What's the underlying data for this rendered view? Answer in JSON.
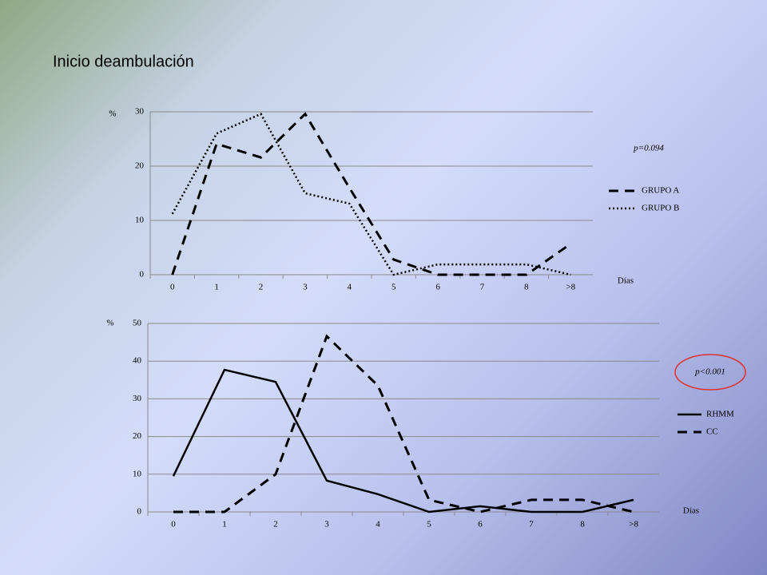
{
  "title": "Inicio deambulación",
  "chart_data": [
    {
      "type": "line",
      "ylabel": "%",
      "xlabel": "Días",
      "annotation": "p=0.094",
      "categories": [
        "0",
        "1",
        "2",
        "3",
        "4",
        "5",
        "6",
        "7",
        "8",
        ">8"
      ],
      "series": [
        {
          "name": "GRUPO A",
          "color": "#000000",
          "dash": "dashed",
          "values": [
            0,
            24.1,
            21.6,
            29.6,
            16,
            2.8,
            0,
            0,
            0,
            5.7
          ]
        },
        {
          "name": "GRUPO B",
          "color": "#000000",
          "dash": "dotted",
          "values": [
            11.2,
            26,
            29.6,
            15,
            13.1,
            0,
            1.9,
            1.9,
            1.9,
            0
          ]
        }
      ],
      "ylim": [
        0,
        30
      ],
      "yticks": [
        0,
        10,
        20,
        30
      ],
      "grid": true
    },
    {
      "type": "line",
      "ylabel": "%",
      "xlabel": "Días",
      "annotation": "p<0.001",
      "categories": [
        "0",
        "1",
        "2",
        "3",
        "4",
        "5",
        "6",
        "7",
        "8",
        ">8"
      ],
      "series": [
        {
          "name": "RHMM",
          "color": "#000000",
          "dash": "solid",
          "values": [
            9.5,
            37.7,
            34.5,
            8.3,
            4.7,
            0,
            1.5,
            0,
            0,
            3.2
          ]
        },
        {
          "name": "CC",
          "color": "#000000",
          "dash": "dashed",
          "values": [
            0,
            0,
            10,
            46.6,
            33.5,
            3.2,
            0,
            3.2,
            3.2,
            0
          ]
        }
      ],
      "ylim": [
        0,
        50
      ],
      "yticks": [
        0,
        10,
        20,
        30,
        40,
        50
      ],
      "grid": true
    }
  ]
}
